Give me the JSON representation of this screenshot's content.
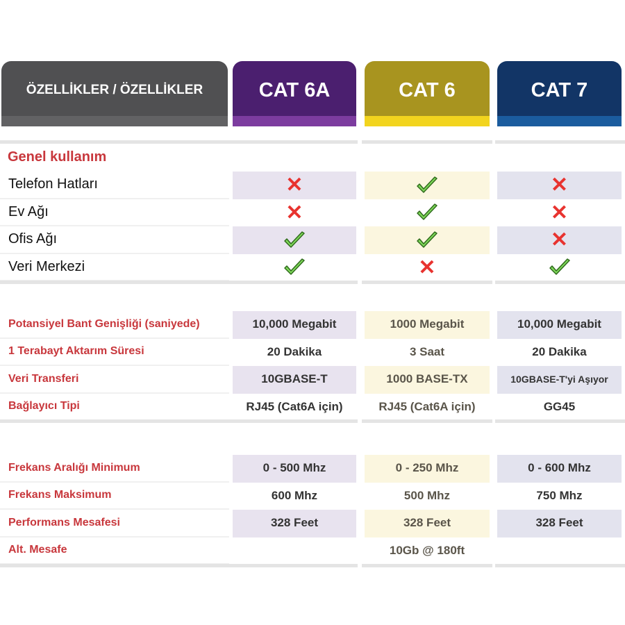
{
  "header": {
    "features": "ÖZELLİKLER / ÖZELLİKLER",
    "columns": [
      "CAT 6A",
      "CAT 6",
      "CAT 7"
    ]
  },
  "colors": {
    "cat6a": "#4b1f6f",
    "cat6": "#a8941f",
    "cat7": "#123566",
    "label_red": "#c8373c",
    "check": "#7fd85a",
    "cross": "#e8332f"
  },
  "general": {
    "title": "Genel kullanım",
    "rows": [
      {
        "label": "Telefon Hatları",
        "values": [
          "cross",
          "check",
          "cross"
        ]
      },
      {
        "label": "Ev Ağı",
        "values": [
          "cross",
          "check",
          "cross"
        ]
      },
      {
        "label": "Ofis Ağı",
        "values": [
          "check",
          "check",
          "cross"
        ]
      },
      {
        "label": "Veri Merkezi",
        "values": [
          "check",
          "cross",
          "check"
        ]
      }
    ]
  },
  "performance": {
    "rows": [
      {
        "label": "Potansiyel Bant Genişliği (saniyede)",
        "values": [
          "10,000 Megabit",
          "1000 Megabit",
          "10,000 Megabit"
        ]
      },
      {
        "label": "1 Terabayt Aktarım Süresi",
        "values": [
          "20 Dakika",
          "3 Saat",
          "20 Dakika"
        ]
      },
      {
        "label": "Veri Transferi",
        "values": [
          "10GBASE-T",
          "1000 BASE-TX",
          "10GBASE-T'yi Aşıyor"
        ]
      },
      {
        "label": "Bağlayıcı Tipi",
        "values": [
          "RJ45 (Cat6A için)",
          "RJ45 (Cat6A için)",
          "GG45"
        ]
      }
    ]
  },
  "frequency": {
    "rows": [
      {
        "label": "Frekans Aralığı Minimum",
        "values": [
          "0 - 500 Mhz",
          "0 - 250 Mhz",
          "0 - 600 Mhz"
        ]
      },
      {
        "label": "Frekans Maksimum",
        "values": [
          "600 Mhz",
          "500 Mhz",
          "750 Mhz"
        ]
      },
      {
        "label": "Performans Mesafesi",
        "values": [
          "328 Feet",
          "328 Feet",
          "328 Feet"
        ]
      },
      {
        "label": "Alt. Mesafe",
        "values": [
          "",
          "10Gb @ 180ft",
          ""
        ]
      }
    ]
  }
}
